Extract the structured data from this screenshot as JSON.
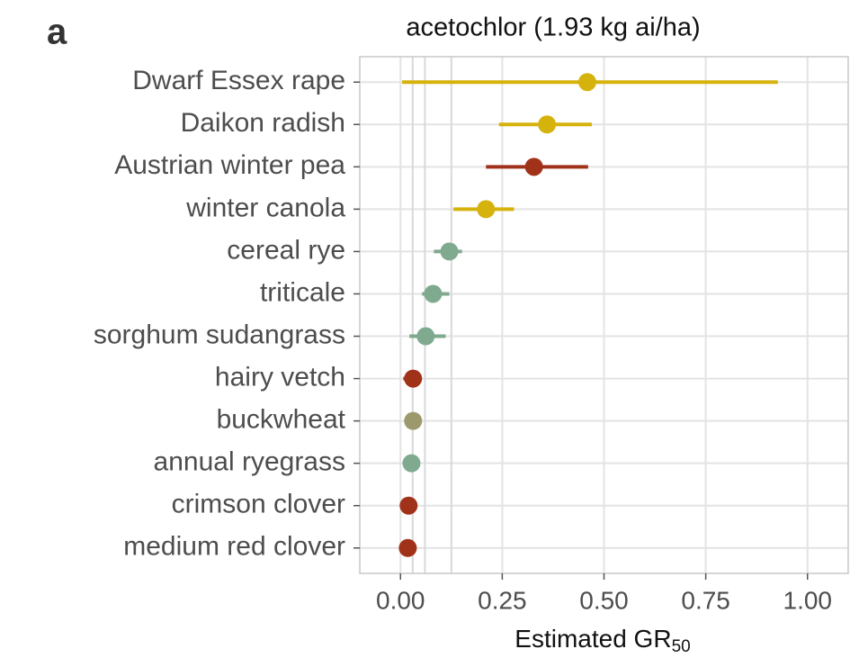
{
  "panel_label": "a",
  "chart_data": {
    "type": "dotplot",
    "title": "acetochlor (1.93 kg ai/ha)",
    "x_label": "Estimated GR",
    "x_label_sub": "50",
    "categories": [
      "Dwarf Essex rape",
      "Daikon radish",
      "Austrian winter pea",
      "winter canola",
      "cereal rye",
      "triticale",
      "sorghum sudangrass",
      "hairy vetch",
      "buckwheat",
      "annual ryegrass",
      "crimson clover",
      "medium red clover"
    ],
    "values": [
      0.459,
      0.36,
      0.328,
      0.21,
      0.12,
      0.08,
      0.062,
      0.031,
      0.031,
      0.027,
      0.02,
      0.018
    ],
    "lower": [
      0.004,
      0.242,
      0.21,
      0.13,
      0.082,
      0.053,
      0.022,
      0.007,
      0.031,
      0.027,
      0.02,
      0.018
    ],
    "upper": [
      0.927,
      0.47,
      0.461,
      0.279,
      0.151,
      0.12,
      0.111,
      0.044,
      0.031,
      0.027,
      0.02,
      0.018
    ],
    "colors": [
      "#d6b20c",
      "#d6b20c",
      "#a1321a",
      "#d6b20c",
      "#80aa8f",
      "#80aa8f",
      "#80aa8f",
      "#a1321a",
      "#9c9a6c",
      "#80aa8f",
      "#a1321a",
      "#a1321a"
    ],
    "xlim": [
      -0.1,
      1.1
    ],
    "xticks": [
      {
        "value": 0,
        "label": "0.00"
      },
      {
        "value": 0.25,
        "label": "0.25"
      },
      {
        "value": 0.5,
        "label": "0.50"
      },
      {
        "value": 0.75,
        "label": "0.75"
      },
      {
        "value": 1,
        "label": "1.00"
      }
    ],
    "reference_lines": [
      0.03,
      0.06,
      0.125
    ],
    "grid": true
  }
}
